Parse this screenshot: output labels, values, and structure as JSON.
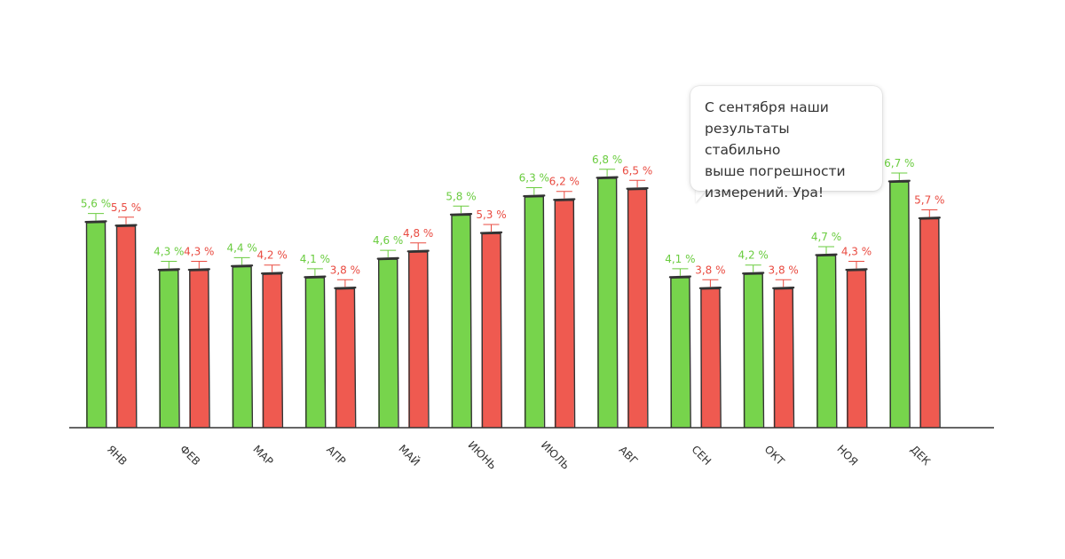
{
  "chart_data": {
    "type": "bar",
    "categories": [
      "ЯНВ",
      "ФЕВ",
      "МАР",
      "АПР",
      "МАЙ",
      "ИЮНЬ",
      "ИЮЛЬ",
      "АВГ",
      "СЕН",
      "ОКТ",
      "НОЯ",
      "ДЕК"
    ],
    "series": [
      {
        "name": "green",
        "color": "#77d44c",
        "values": [
          5.6,
          4.3,
          4.4,
          4.1,
          4.6,
          5.8,
          6.3,
          6.8,
          4.1,
          4.2,
          4.7,
          6.7
        ],
        "labels": [
          "5,6 %",
          "4,3 %",
          "4,4 %",
          "4,1 %",
          "4,6 %",
          "5,8 %",
          "6,3 %",
          "6,8 %",
          "4,1 %",
          "4,2 %",
          "4,7 %",
          "6,7 %"
        ]
      },
      {
        "name": "red",
        "color": "#ef5a50",
        "values": [
          5.5,
          4.3,
          4.2,
          3.8,
          4.8,
          5.3,
          6.2,
          6.5,
          3.8,
          3.8,
          4.3,
          5.7
        ],
        "labels": [
          "5,5 %",
          "4,3 %",
          "4,2 %",
          "3,8 %",
          "4,8 %",
          "5,3 %",
          "6,2 %",
          "6,5 %",
          "3,8 %",
          "3,8 %",
          "4,3 %",
          "5,7 %"
        ]
      }
    ],
    "ylim": [
      0,
      7.5
    ],
    "title": "",
    "xlabel": "",
    "ylabel": "",
    "grid": false,
    "label_colors": {
      "green": "#6acc3f",
      "red": "#e94b41"
    },
    "outline_color": "#333333"
  },
  "callout": {
    "lines": [
      "С сентября наши",
      "результаты стабильно",
      "выше погрешности",
      "измерений. Ура!"
    ]
  }
}
